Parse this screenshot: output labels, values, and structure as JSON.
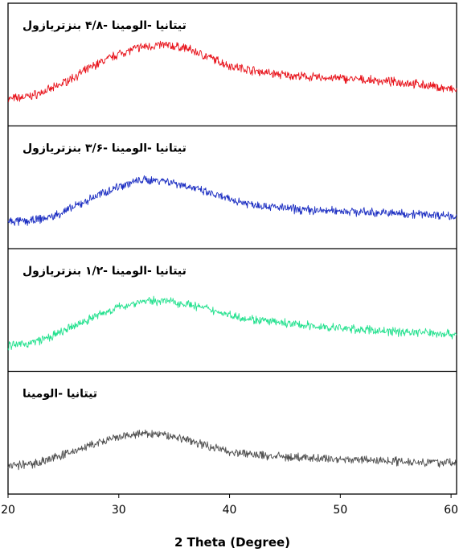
{
  "chart_data": {
    "type": "line",
    "xlabel": "2 Theta (Degree)",
    "ylabel": "",
    "xlim": [
      20,
      60.5
    ],
    "xticks": [
      20,
      30,
      40,
      50,
      60
    ],
    "grid": false,
    "legend": "none",
    "series": [
      {
        "name": "تیتانیا -الومینا -۴/۸ بنزتریازول",
        "color": "#e8141c",
        "x": [
          20,
          22,
          24,
          26,
          28,
          30,
          32,
          34,
          36,
          38,
          40,
          42,
          44,
          46,
          48,
          50,
          52,
          54,
          56,
          58,
          60.5
        ],
        "y": [
          0.1,
          0.14,
          0.24,
          0.4,
          0.57,
          0.71,
          0.8,
          0.83,
          0.79,
          0.67,
          0.55,
          0.49,
          0.44,
          0.41,
          0.39,
          0.38,
          0.36,
          0.34,
          0.32,
          0.28,
          0.22
        ]
      },
      {
        "name": "تیتانیا -الومینا -۳/۶ بنزتریازول",
        "color": "#1c2ec2",
        "x": [
          20,
          22,
          24,
          26,
          28,
          30,
          32,
          34,
          36,
          38,
          40,
          42,
          44,
          46,
          48,
          50,
          52,
          54,
          56,
          58,
          60.5
        ],
        "y": [
          0.1,
          0.11,
          0.17,
          0.3,
          0.45,
          0.58,
          0.66,
          0.66,
          0.59,
          0.49,
          0.4,
          0.34,
          0.3,
          0.27,
          0.25,
          0.25,
          0.23,
          0.22,
          0.21,
          0.2,
          0.18
        ]
      },
      {
        "name": "تیتانیا -الومینا -۱/۲ بنزتریازول",
        "color": "#23e18e",
        "x": [
          20,
          22,
          24,
          26,
          28,
          30,
          32,
          34,
          36,
          38,
          40,
          42,
          44,
          46,
          48,
          50,
          52,
          54,
          56,
          58,
          60.5
        ],
        "y": [
          0.08,
          0.12,
          0.21,
          0.35,
          0.49,
          0.6,
          0.68,
          0.69,
          0.65,
          0.58,
          0.5,
          0.44,
          0.4,
          0.37,
          0.34,
          0.32,
          0.3,
          0.28,
          0.27,
          0.26,
          0.24
        ]
      },
      {
        "name": "تیتانیا -الومینا",
        "color": "#505050",
        "x": [
          20,
          22,
          24,
          26,
          28,
          30,
          32,
          34,
          36,
          38,
          40,
          42,
          44,
          46,
          48,
          50,
          52,
          54,
          56,
          58,
          60.5
        ],
        "y": [
          0.12,
          0.14,
          0.22,
          0.32,
          0.42,
          0.5,
          0.55,
          0.54,
          0.48,
          0.39,
          0.31,
          0.27,
          0.25,
          0.23,
          0.22,
          0.21,
          0.2,
          0.19,
          0.18,
          0.17,
          0.16
        ]
      }
    ]
  }
}
